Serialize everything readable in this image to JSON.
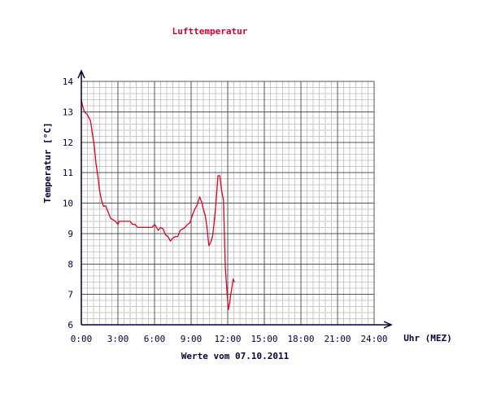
{
  "chart_data": {
    "type": "line",
    "title": "Lufttemperatur",
    "ylabel": "Temperatur [°C]",
    "xlabel": "Uhr (MEZ)",
    "subtitle": "Werte vom 07.10.2011",
    "xlim": [
      0,
      24
    ],
    "ylim": [
      6,
      14
    ],
    "x_ticks": [
      0,
      3,
      6,
      9,
      12,
      15,
      18,
      21,
      24
    ],
    "x_tick_labels": [
      "0:00",
      "3:00",
      "6:00",
      "9:00",
      "12:00",
      "15:00",
      "18:00",
      "21:00",
      "24:00"
    ],
    "y_ticks": [
      6,
      7,
      8,
      9,
      10,
      11,
      12,
      13,
      14
    ],
    "y_tick_labels": [
      "6",
      "7",
      "8",
      "9",
      "10",
      "11",
      "12",
      "13",
      "14"
    ],
    "grid": true,
    "colors": {
      "line": "#dd0022",
      "axis": "#000033",
      "grid_major": "#555555",
      "grid_minor": "#c8c8c8"
    },
    "series": [
      {
        "x": [
          0.0,
          0.1,
          0.25,
          0.5,
          0.75,
          0.9,
          1.05,
          1.2,
          1.35,
          1.5,
          1.65,
          1.8,
          2.0,
          2.2,
          2.4,
          2.6,
          2.8,
          3.0,
          3.1,
          3.2,
          3.4,
          3.6,
          3.8,
          4.0,
          4.2,
          4.4,
          4.6,
          4.8,
          5.0,
          5.3,
          5.6,
          5.8,
          6.0,
          6.1,
          6.3,
          6.5,
          6.7,
          6.9,
          7.1,
          7.3,
          7.5,
          7.7,
          7.9,
          8.1,
          8.3,
          8.5,
          8.7,
          8.9,
          9.1,
          9.3,
          9.5,
          9.7,
          9.85,
          10.0,
          10.15,
          10.3,
          10.45,
          10.6,
          10.75,
          10.9,
          11.05,
          11.2,
          11.35,
          11.5,
          11.65,
          11.8,
          11.95,
          12.05,
          12.15,
          12.25,
          12.35,
          12.45,
          12.55
        ],
        "y": [
          13.4,
          13.2,
          13.0,
          12.9,
          12.7,
          12.3,
          11.9,
          11.3,
          10.9,
          10.4,
          10.1,
          9.9,
          9.9,
          9.7,
          9.5,
          9.45,
          9.4,
          9.3,
          9.4,
          9.4,
          9.4,
          9.4,
          9.4,
          9.4,
          9.3,
          9.3,
          9.2,
          9.2,
          9.2,
          9.2,
          9.2,
          9.2,
          9.3,
          9.25,
          9.1,
          9.2,
          9.15,
          8.95,
          8.9,
          8.75,
          8.85,
          8.9,
          8.9,
          9.1,
          9.15,
          9.2,
          9.3,
          9.35,
          9.6,
          9.8,
          9.95,
          10.2,
          10.05,
          9.8,
          9.6,
          9.2,
          8.6,
          8.7,
          8.9,
          9.4,
          10.1,
          10.9,
          10.9,
          10.4,
          10.1,
          7.9,
          7.0,
          6.5,
          6.7,
          7.0,
          7.25,
          7.5,
          7.4
        ]
      }
    ]
  }
}
